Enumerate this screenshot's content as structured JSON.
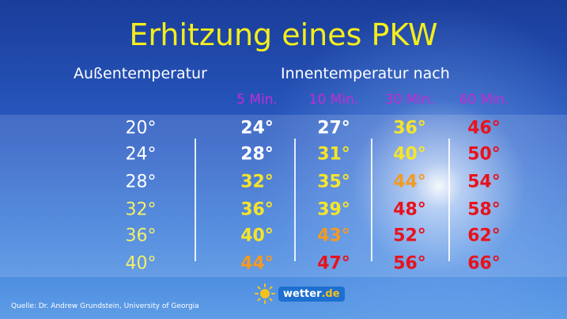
{
  "title": "Erhitzung eines PKW",
  "header": {
    "outside": "Außentemperatur",
    "inside": "Innentemperatur nach"
  },
  "columns": [
    "5 Min.",
    "10 Min.",
    "30 Min.",
    "60 Min."
  ],
  "rows": [
    {
      "outside": "20°",
      "values": [
        "24°",
        "27°",
        "36°",
        "46°"
      ]
    },
    {
      "outside": "24°",
      "values": [
        "28°",
        "31°",
        "40°",
        "50°"
      ]
    },
    {
      "outside": "28°",
      "values": [
        "32°",
        "35°",
        "44°",
        "54°"
      ]
    },
    {
      "outside": "32°",
      "values": [
        "36°",
        "39°",
        "48°",
        "58°"
      ]
    },
    {
      "outside": "36°",
      "values": [
        "40°",
        "43°",
        "52°",
        "62°"
      ]
    },
    {
      "outside": "40°",
      "values": [
        "44°",
        "47°",
        "56°",
        "66°"
      ]
    }
  ],
  "colors": {
    "outside": [
      "#ffffff",
      "#ffffff",
      "#ffffff",
      "#f3f06a",
      "#f3f06a",
      "#f3f06a"
    ],
    "values": [
      [
        "#ffffff",
        "#ffffff",
        "#f5e52a",
        "#e8121c"
      ],
      [
        "#ffffff",
        "#f5e52a",
        "#f5e52a",
        "#e8121c"
      ],
      [
        "#f5e52a",
        "#f5e52a",
        "#f39a22",
        "#e8121c"
      ],
      [
        "#f5e52a",
        "#f5e52a",
        "#e8121c",
        "#e8121c"
      ],
      [
        "#f5e52a",
        "#f39a22",
        "#e8121c",
        "#e8121c"
      ],
      [
        "#f39a22",
        "#e8121c",
        "#e8121c",
        "#e8121c"
      ]
    ]
  },
  "source": "Quelle: Dr. Andrew Grundstein, University of Georgia",
  "logo": {
    "name": "wetter",
    "suffix": ".de"
  }
}
